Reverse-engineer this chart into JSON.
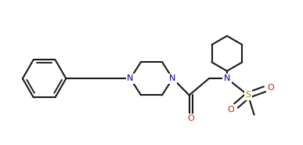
{
  "bg_color": "#ffffff",
  "line_color": "#1a1a1a",
  "n_color": "#00008b",
  "o_color": "#cc2200",
  "s_color": "#b8860b",
  "line_width": 1.5,
  "font_size": 8.0,
  "fig_width": 3.87,
  "fig_height": 1.85,
  "dpi": 100,
  "xlim": [
    0.0,
    10.0
  ],
  "ylim": [
    0.5,
    5.2
  ]
}
